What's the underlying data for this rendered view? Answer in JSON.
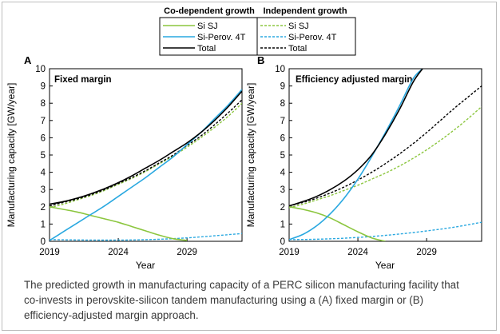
{
  "colors": {
    "si_sj": "#8cc63f",
    "si_perov_4t": "#29a8e0",
    "total": "#000000"
  },
  "legend": {
    "headers": [
      "Co-dependent growth",
      "Independent growth"
    ],
    "co_dependent": [
      "Si SJ",
      "Si-Perov. 4T",
      "Total"
    ],
    "independent": [
      "Si SJ",
      "Si-Perov. 4T",
      "Total"
    ]
  },
  "caption": "The predicted growth in manufacturing capacity of a PERC silicon manufacturing facility that co-invests in perovskite-silicon tandem manufacturing using a (A) fixed margin or (B) efficiency-adjusted margin approach.",
  "chart_data": [
    {
      "type": "line",
      "panel": "A",
      "title": "Fixed margin",
      "xlabel": "Year",
      "ylabel": "Manufacturing capacity [GW/year]",
      "xlim": [
        2019,
        2033
      ],
      "ylim": [
        0,
        10
      ],
      "xticks": [
        2019,
        2024,
        2029
      ],
      "yticks": [
        0,
        1,
        2,
        3,
        4,
        5,
        6,
        7,
        8,
        9,
        10
      ],
      "grid": false,
      "series": [
        {
          "name": "Si SJ",
          "group": "Co-dependent growth",
          "style": "solid",
          "color": "#8cc63f",
          "x": [
            2019,
            2020,
            2021,
            2022,
            2023,
            2024,
            2025,
            2026,
            2027,
            2028,
            2029
          ],
          "y": [
            2.0,
            1.85,
            1.7,
            1.5,
            1.3,
            1.1,
            0.85,
            0.6,
            0.35,
            0.15,
            0.05
          ]
        },
        {
          "name": "Si-Perov. 4T",
          "group": "Co-dependent growth",
          "style": "solid",
          "color": "#29a8e0",
          "x": [
            2019,
            2020,
            2021,
            2022,
            2023,
            2024,
            2025,
            2026,
            2027,
            2028,
            2029,
            2030,
            2031,
            2032,
            2033
          ],
          "y": [
            0.05,
            0.55,
            1.05,
            1.55,
            2.05,
            2.6,
            3.15,
            3.7,
            4.3,
            4.9,
            5.6,
            6.3,
            7.1,
            7.9,
            8.8
          ]
        },
        {
          "name": "Total",
          "group": "Co-dependent growth",
          "style": "solid",
          "color": "#000000",
          "x": [
            2019,
            2020,
            2021,
            2022,
            2023,
            2024,
            2025,
            2026,
            2027,
            2028,
            2029,
            2030,
            2031,
            2032,
            2033
          ],
          "y": [
            2.15,
            2.3,
            2.5,
            2.75,
            3.05,
            3.4,
            3.8,
            4.25,
            4.7,
            5.2,
            5.7,
            6.3,
            7.0,
            7.8,
            8.7
          ]
        },
        {
          "name": "Si SJ",
          "group": "Independent growth",
          "style": "dashed",
          "color": "#8cc63f",
          "x": [
            2019,
            2020,
            2021,
            2022,
            2023,
            2024,
            2025,
            2026,
            2027,
            2028,
            2029,
            2030,
            2031,
            2032,
            2033
          ],
          "y": [
            1.95,
            2.15,
            2.4,
            2.65,
            2.95,
            3.3,
            3.65,
            4.05,
            4.5,
            4.95,
            5.45,
            6.0,
            6.6,
            7.25,
            8.0
          ]
        },
        {
          "name": "Si-Perov. 4T",
          "group": "Independent growth",
          "style": "dashed",
          "color": "#29a8e0",
          "x": [
            2019,
            2021,
            2023,
            2025,
            2027,
            2029,
            2031,
            2033
          ],
          "y": [
            0.1,
            0.08,
            0.07,
            0.08,
            0.12,
            0.2,
            0.32,
            0.45
          ]
        },
        {
          "name": "Total",
          "group": "Independent growth",
          "style": "dashed",
          "color": "#000000",
          "x": [
            2019,
            2020,
            2021,
            2022,
            2023,
            2024,
            2025,
            2026,
            2027,
            2028,
            2029,
            2030,
            2031,
            2032,
            2033
          ],
          "y": [
            2.05,
            2.25,
            2.45,
            2.7,
            3.0,
            3.35,
            3.7,
            4.1,
            4.55,
            5.0,
            5.55,
            6.1,
            6.75,
            7.45,
            8.2
          ]
        }
      ]
    },
    {
      "type": "line",
      "panel": "B",
      "title": "Efficiency adjusted margin",
      "xlabel": "Year",
      "ylabel": "Manufacturing capacity [GW/year]",
      "xlim": [
        2019,
        2033
      ],
      "ylim": [
        0,
        10
      ],
      "xticks": [
        2019,
        2024,
        2029
      ],
      "yticks": [
        0,
        1,
        2,
        3,
        4,
        5,
        6,
        7,
        8,
        9,
        10
      ],
      "grid": false,
      "series": [
        {
          "name": "Si SJ",
          "group": "Co-dependent growth",
          "style": "solid",
          "color": "#8cc63f",
          "x": [
            2019,
            2020,
            2021,
            2022,
            2023,
            2024,
            2025,
            2026
          ],
          "y": [
            2.0,
            1.85,
            1.65,
            1.35,
            0.95,
            0.55,
            0.2,
            0.0
          ]
        },
        {
          "name": "Si-Perov. 4T",
          "group": "Co-dependent growth",
          "style": "solid",
          "color": "#29a8e0",
          "x": [
            2019,
            2020,
            2021,
            2022,
            2023,
            2024,
            2025,
            2026,
            2027,
            2028,
            2028.7
          ],
          "y": [
            0.1,
            0.4,
            0.9,
            1.6,
            2.5,
            3.6,
            4.9,
            6.3,
            7.8,
            9.4,
            10.0
          ]
        },
        {
          "name": "Total",
          "group": "Co-dependent growth",
          "style": "solid",
          "color": "#000000",
          "x": [
            2019,
            2020,
            2021,
            2022,
            2023,
            2024,
            2025,
            2026,
            2027,
            2028,
            2028.7
          ],
          "y": [
            2.05,
            2.3,
            2.6,
            3.0,
            3.5,
            4.15,
            5.0,
            6.2,
            7.6,
            9.2,
            10.0
          ]
        },
        {
          "name": "Si SJ",
          "group": "Independent growth",
          "style": "dashed",
          "color": "#8cc63f",
          "x": [
            2019,
            2020,
            2021,
            2022,
            2023,
            2024,
            2025,
            2026,
            2027,
            2028,
            2029,
            2030,
            2031,
            2032,
            2033
          ],
          "y": [
            1.95,
            2.15,
            2.4,
            2.65,
            2.95,
            3.25,
            3.6,
            3.95,
            4.35,
            4.8,
            5.3,
            5.85,
            6.45,
            7.1,
            7.8
          ]
        },
        {
          "name": "Si-Perov. 4T",
          "group": "Independent growth",
          "style": "dashed",
          "color": "#29a8e0",
          "x": [
            2019,
            2021,
            2023,
            2025,
            2027,
            2029,
            2031,
            2033
          ],
          "y": [
            0.1,
            0.12,
            0.18,
            0.28,
            0.42,
            0.6,
            0.82,
            1.1
          ]
        },
        {
          "name": "Total",
          "group": "Independent growth",
          "style": "dashed",
          "color": "#000000",
          "x": [
            2019,
            2020,
            2021,
            2022,
            2023,
            2024,
            2025,
            2026,
            2027,
            2028,
            2029,
            2030,
            2031,
            2032,
            2033
          ],
          "y": [
            2.05,
            2.25,
            2.5,
            2.8,
            3.15,
            3.55,
            4.0,
            4.5,
            5.05,
            5.65,
            6.3,
            7.0,
            7.7,
            8.35,
            9.0
          ]
        }
      ]
    }
  ]
}
